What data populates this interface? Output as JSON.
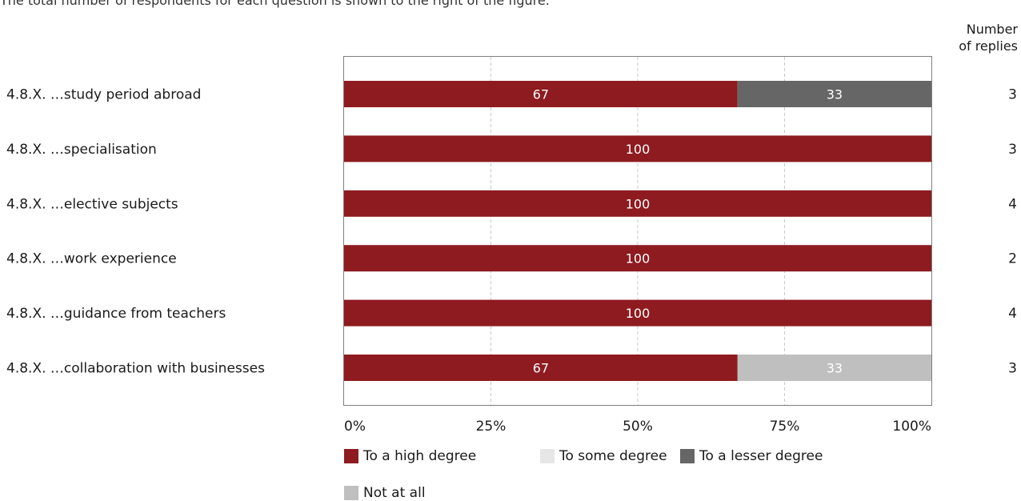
{
  "intro_text": "The total number of respondents for each question is shown to the right of the figure.",
  "replies_header": [
    "Number",
    "of replies"
  ],
  "chart_data": {
    "type": "bar",
    "orientation": "horizontal",
    "stacked": true,
    "categories": [
      "4.8.X. …study period abroad",
      "4.8.X. …specialisation",
      "4.8.X. …elective subjects",
      "4.8.X. …work experience",
      "4.8.X. …guidance from teachers",
      "4.8.X. …collaboration with businesses"
    ],
    "series": [
      {
        "name": "To a high degree",
        "color": "#8e1b20",
        "values": [
          67,
          100,
          100,
          100,
          100,
          67
        ]
      },
      {
        "name": "To some degree",
        "color": "#e6e6e6",
        "values": [
          0,
          0,
          0,
          0,
          0,
          0
        ]
      },
      {
        "name": "To a lesser degree",
        "color": "#666666",
        "values": [
          33,
          0,
          0,
          0,
          0,
          0
        ]
      },
      {
        "name": "Not at all",
        "color": "#bfbfbf",
        "values": [
          0,
          0,
          0,
          0,
          0,
          33
        ]
      }
    ],
    "replies": [
      3,
      3,
      4,
      2,
      4,
      3
    ],
    "xlim": [
      0,
      100
    ],
    "xticks": [
      "0%",
      "25%",
      "50%",
      "75%",
      "100%"
    ],
    "grid": "vertical dashed",
    "legend_position": "bottom"
  }
}
